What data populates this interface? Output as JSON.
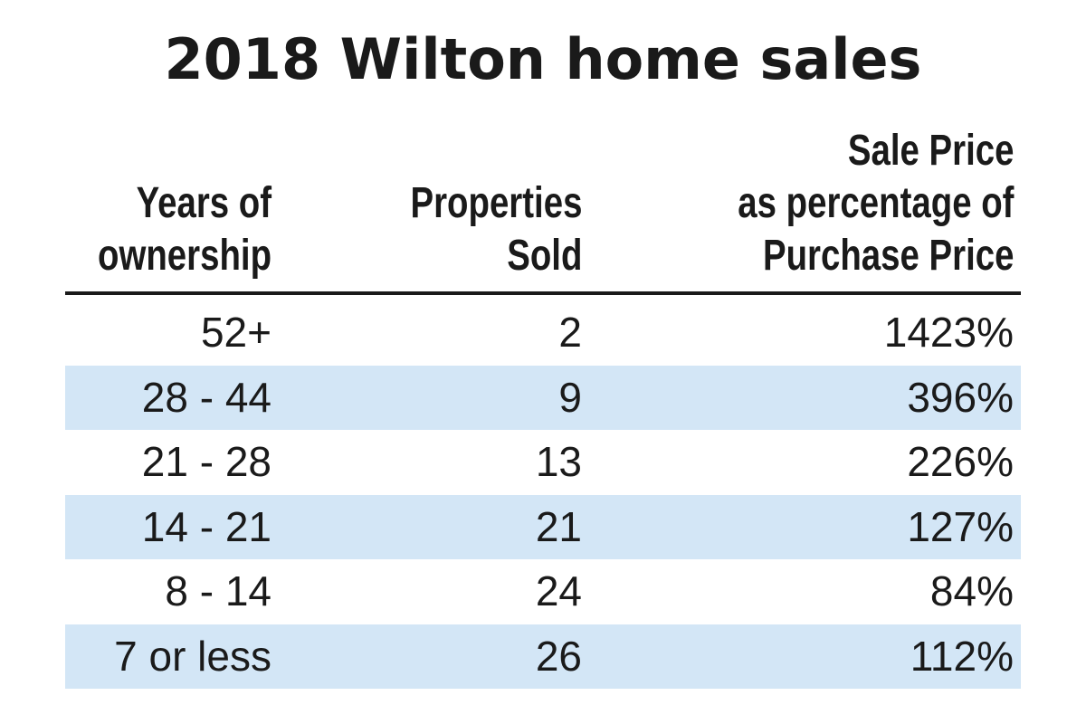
{
  "chart_data": {
    "type": "table",
    "title": "2018 Wilton home sales",
    "columns": [
      [
        "Years of",
        "ownership"
      ],
      [
        "Properties",
        "Sold"
      ],
      [
        "Sale Price",
        "as percentage of",
        "Purchase Price"
      ]
    ],
    "rows": [
      {
        "years": "52+",
        "sold": "2",
        "pct": "1423%"
      },
      {
        "years": "28 - 44",
        "sold": "9",
        "pct": "396%"
      },
      {
        "years": "21 - 28",
        "sold": "13",
        "pct": "226%"
      },
      {
        "years": "14 - 21",
        "sold": "21",
        "pct": "127%"
      },
      {
        "years": "8 - 14",
        "sold": "24",
        "pct": "84%"
      },
      {
        "years": "7 or less",
        "sold": "26",
        "pct": "112%"
      }
    ],
    "alternating_row_color": "#d3e6f6",
    "text_color": "#1a1a1a"
  }
}
